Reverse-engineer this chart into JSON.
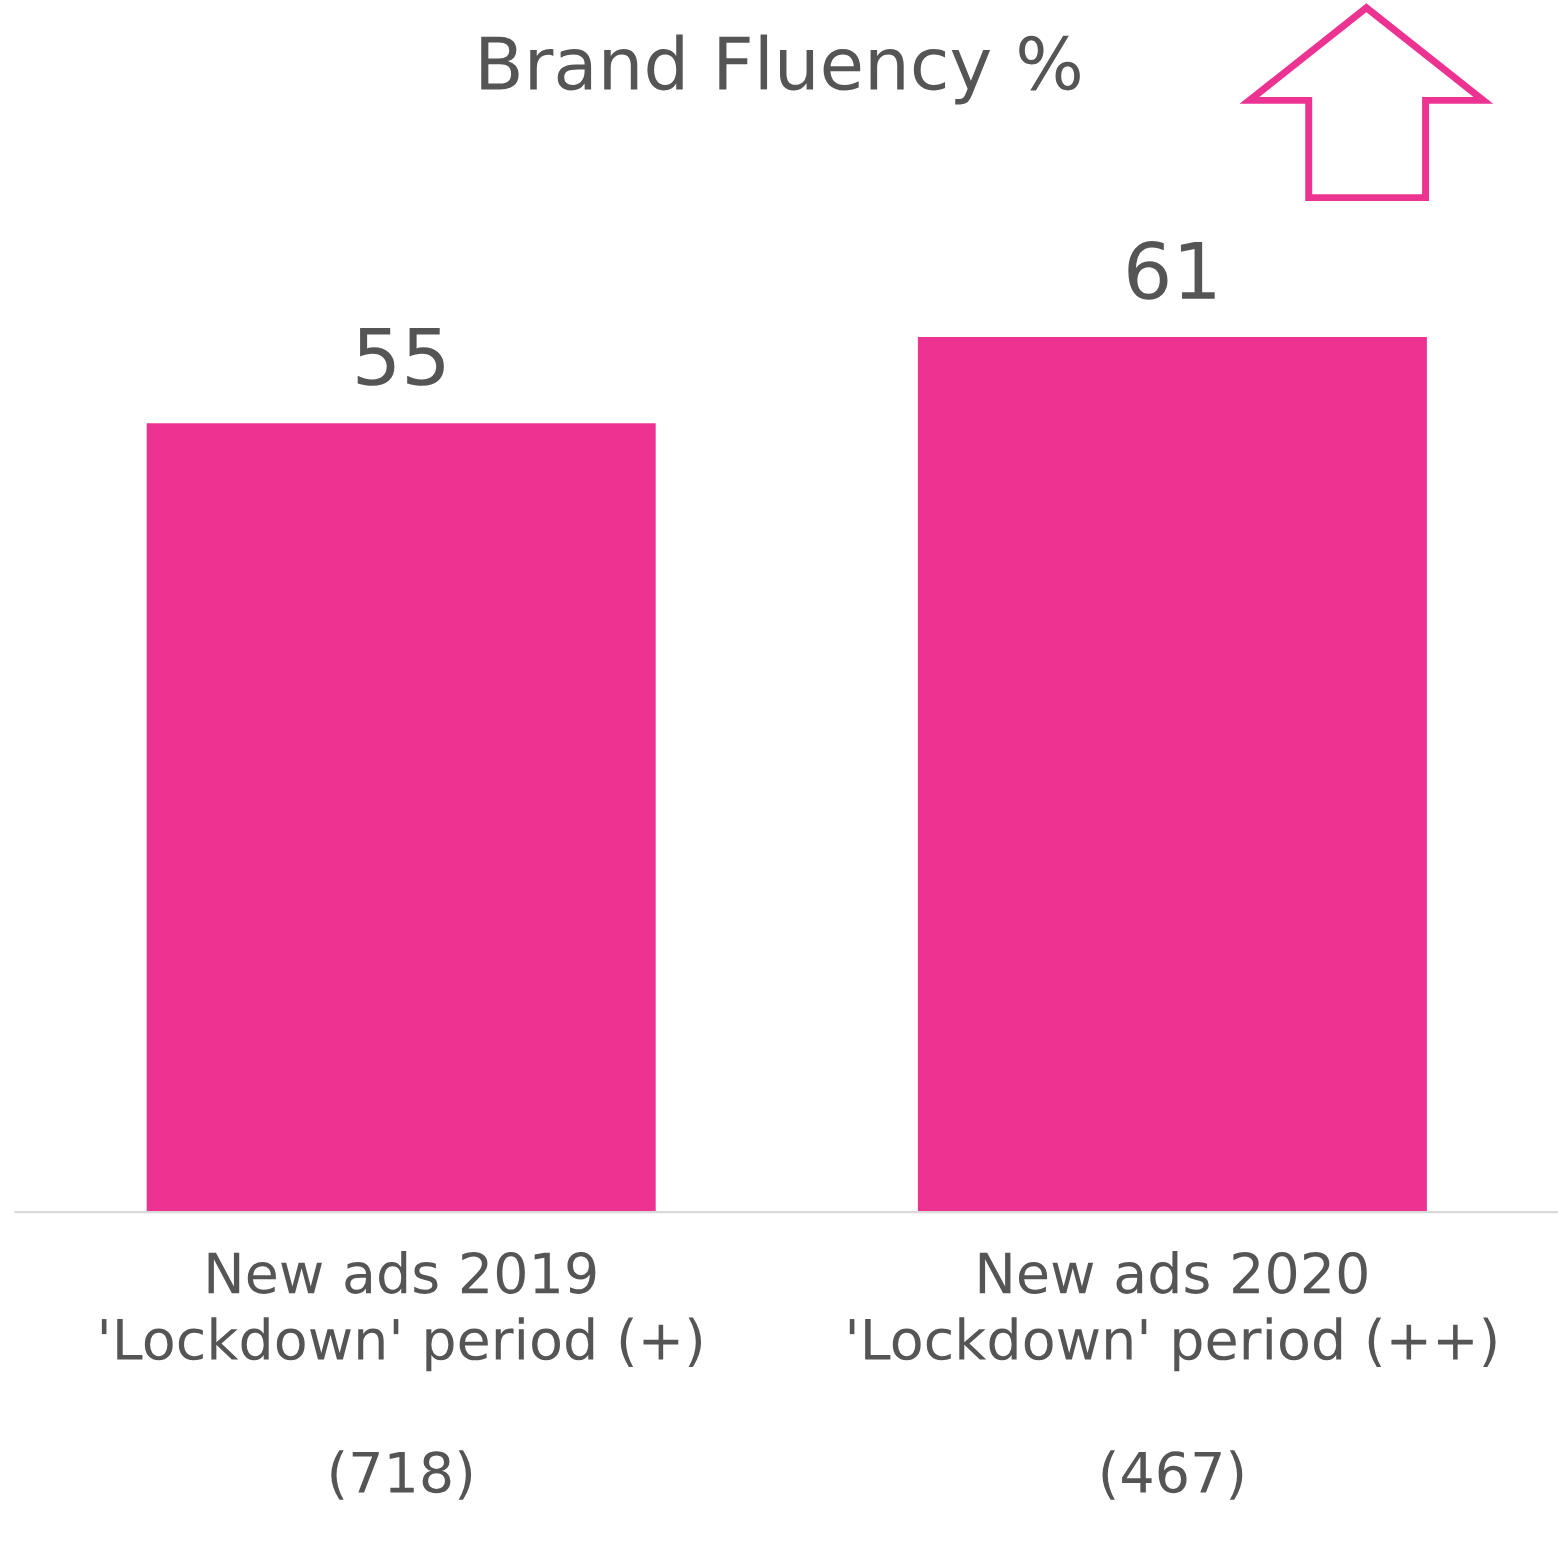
{
  "chart_data": {
    "type": "bar",
    "title": "Brand Fluency %",
    "categories": [
      "New ads 2019\n'Lockdown' period (+)\n\n(718)",
      "New ads 2020\n'Lockdown' period (++)\n\n(467)"
    ],
    "values": [
      55,
      61
    ],
    "color": "#ec3392",
    "data_labels": true,
    "grid": false,
    "legend": false
  }
}
